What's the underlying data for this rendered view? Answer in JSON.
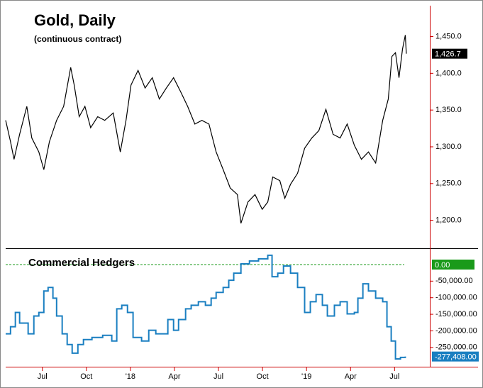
{
  "chart_data": [
    {
      "type": "line",
      "title": "Gold, Daily",
      "subtitle": "(continuous contract)",
      "color": "#000000",
      "x": [
        -2.5,
        -2.17,
        -1.93,
        -1.55,
        -1.06,
        -0.72,
        -0.24,
        0.1,
        0.48,
        0.97,
        1.45,
        1.93,
        2.17,
        2.51,
        2.9,
        3.29,
        3.77,
        4.25,
        4.83,
        5.31,
        5.7,
        6.04,
        6.52,
        7.0,
        7.49,
        7.97,
        8.45,
        8.94,
        9.42,
        9.9,
        10.39,
        10.87,
        11.35,
        11.84,
        12.32,
        12.8,
        13.29,
        13.53,
        14.01,
        14.49,
        14.98,
        15.36,
        15.7,
        16.18,
        16.52,
        16.91,
        17.39,
        17.87,
        18.36,
        18.84,
        19.32,
        19.81,
        20.29,
        20.77,
        21.26,
        21.74,
        22.22,
        22.71,
        23.19,
        23.57,
        23.82,
        24.06,
        24.3,
        24.54,
        24.73,
        24.8
      ],
      "values": [
        1336,
        1307,
        1283,
        1317,
        1355,
        1312,
        1293,
        1269,
        1307,
        1336,
        1355,
        1408,
        1384,
        1341,
        1355,
        1326,
        1341,
        1336,
        1346,
        1293,
        1336,
        1384,
        1404,
        1380,
        1394,
        1365,
        1380,
        1394,
        1375,
        1355,
        1331,
        1336,
        1331,
        1293,
        1269,
        1244,
        1235,
        1196,
        1225,
        1235,
        1215,
        1225,
        1259,
        1254,
        1230,
        1249,
        1264,
        1298,
        1312,
        1322,
        1351,
        1317,
        1312,
        1331,
        1302,
        1283,
        1293,
        1278,
        1336,
        1365,
        1423,
        1428,
        1394,
        1433,
        1452,
        1426.7
      ],
      "last_value_label": "1,426.7",
      "xlim": [
        -2.5,
        26.4
      ],
      "ylim": [
        1162,
        1492
      ],
      "yticks": [
        {
          "value": 1200,
          "label": "1,200.0"
        },
        {
          "value": 1250,
          "label": "1,250.0"
        },
        {
          "value": 1300,
          "label": "1,300.0"
        },
        {
          "value": 1350,
          "label": "1,350.0"
        },
        {
          "value": 1400,
          "label": "1,400.0"
        },
        {
          "value": 1450,
          "label": "1,450.0"
        }
      ]
    },
    {
      "type": "step",
      "x": [
        -2.5,
        -2.17,
        -1.84,
        -1.55,
        -1.21,
        -0.97,
        -0.58,
        -0.24,
        0.1,
        0.39,
        0.72,
        0.97,
        1.35,
        1.69,
        2.03,
        2.42,
        2.8,
        3.38,
        4.11,
        4.73,
        5.07,
        5.41,
        5.8,
        6.18,
        6.76,
        7.25,
        7.73,
        8.21,
        8.55,
        8.94,
        9.28,
        9.76,
        10.14,
        10.63,
        11.11,
        11.5,
        11.84,
        12.32,
        12.7,
        13.04,
        13.53,
        14.11,
        14.73,
        15.36,
        15.65,
        16.04,
        16.43,
        16.91,
        17.39,
        17.87,
        18.26,
        18.65,
        19.08,
        19.42,
        19.9,
        20.29,
        20.77,
        21.26,
        21.5,
        21.84,
        22.22,
        22.71,
        23.19,
        23.48,
        23.77,
        24.06,
        24.4,
        24.73
      ],
      "series": [
        {
          "name": "Commercial Hedgers",
          "color": "#1a7fc1",
          "values": [
            -209000,
            -187500,
            -144400,
            -176700,
            -176700,
            -209000,
            -155200,
            -144400,
            -79700,
            -69000,
            -101300,
            -155200,
            -209000,
            -241400,
            -267200,
            -241400,
            -226300,
            -219800,
            -213400,
            -230600,
            -133600,
            -122800,
            -144400,
            -219800,
            -230600,
            -198300,
            -209000,
            -209000,
            -165900,
            -198300,
            -165900,
            -133600,
            -122800,
            -112100,
            -122800,
            -101300,
            -84000,
            -69000,
            -47400,
            -25900,
            2200,
            10800,
            17200,
            28000,
            -36600,
            -25900,
            -4300,
            -25900,
            -69000,
            -144400,
            -112100,
            -90500,
            -122800,
            -155200,
            -122800,
            -112100,
            -148700,
            -144400,
            -101300,
            -58200,
            -79700,
            -101300,
            -112100,
            -187500,
            -230600,
            -284500,
            -280100,
            -277408
          ]
        }
      ],
      "last_value_label": "-277,408.00",
      "reference_line": {
        "value": 0,
        "label": "0.00",
        "color": "#1a9a1a"
      },
      "xlim": [
        -2.5,
        26.4
      ],
      "ylim": [
        -306000,
        47000
      ],
      "yticks": [
        {
          "value": -250000,
          "label": "-250,000.00"
        },
        {
          "value": -200000,
          "label": "-200,000.00"
        },
        {
          "value": -150000,
          "label": "-150,000.00"
        },
        {
          "value": -100000,
          "label": "-100,000.00"
        },
        {
          "value": -50000,
          "label": "-50,000.00"
        }
      ],
      "xticks": [
        {
          "value": 0,
          "label": "Jul"
        },
        {
          "value": 3,
          "label": "Oct"
        },
        {
          "value": 6,
          "label": "'18"
        },
        {
          "value": 9,
          "label": "Apr"
        },
        {
          "value": 12,
          "label": "Jul"
        },
        {
          "value": 15,
          "label": "Oct"
        },
        {
          "value": 18,
          "label": "'19"
        },
        {
          "value": 21,
          "label": "Apr"
        },
        {
          "value": 24,
          "label": "Jul"
        }
      ]
    }
  ]
}
